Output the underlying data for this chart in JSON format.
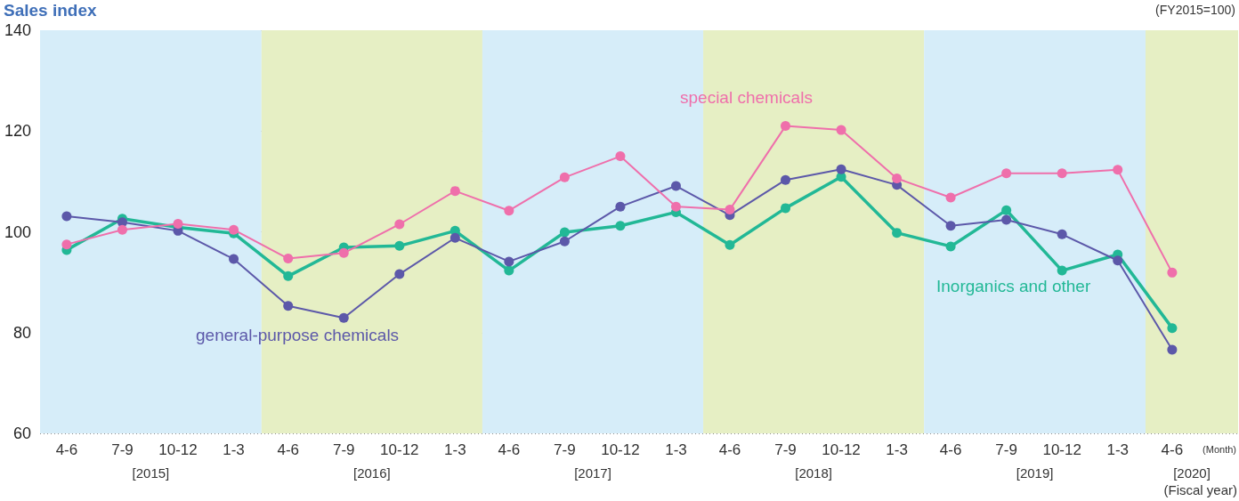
{
  "chart_data": {
    "type": "line",
    "ylabel": "Sales index",
    "xlabel": "(Month)",
    "annotations": [
      "(FY2015=100)",
      "(Fiscal year)"
    ],
    "x": [
      "2015-05-15",
      "2015-08-15",
      "2015-11-15",
      "2016-02-15",
      "2016-05-15",
      "2016-08-15",
      "2016-11-15",
      "2017-02-15",
      "2017-05-15",
      "2017-08-15",
      "2017-11-15",
      "2018-02-15",
      "2018-05-15",
      "2018-08-15",
      "2018-11-15",
      "2019-02-15",
      "2019-05-15",
      "2019-08-15",
      "2019-11-15",
      "2020-02-15",
      "2020-05-15"
    ],
    "series": [
      {
        "name": "Inorganics and other",
        "color": "#22b896",
        "values": [
          96.4,
          102.6,
          100.9,
          99.7,
          91.2,
          96.9,
          97.2,
          100.2,
          92.3,
          99.9,
          101.2,
          103.9,
          97.4,
          104.7,
          110.9,
          99.8,
          97.1,
          104.3,
          92.3,
          95.5,
          80.9
        ]
      },
      {
        "name": "general-purpose chemicals",
        "color": "#5c58a9",
        "values": [
          103.1,
          101.9,
          100.2,
          94.6,
          85.3,
          82.9,
          91.6,
          98.8,
          94.1,
          98.1,
          105.0,
          109.1,
          103.3,
          110.3,
          112.4,
          109.3,
          101.2,
          102.4,
          99.5,
          94.3,
          76.6
        ]
      },
      {
        "name": "special chemicals",
        "color": "#ef6fab",
        "values": [
          97.5,
          100.4,
          101.6,
          100.4,
          94.7,
          95.8,
          101.5,
          108.1,
          104.2,
          110.8,
          115.0,
          105.0,
          104.4,
          121.0,
          120.2,
          110.6,
          106.8,
          111.6,
          111.6,
          112.3,
          91.9
        ]
      }
    ],
    "bands": [
      {
        "axis": "x",
        "from": "2015-04",
        "to": "2016-04",
        "label": "[2015]",
        "color": "#d6edf9"
      },
      {
        "axis": "x",
        "from": "2016-04",
        "to": "2017-04",
        "label": "[2016]",
        "color": "#e6efc4"
      },
      {
        "axis": "x",
        "from": "2017-04",
        "to": "2018-04",
        "label": "[2017]",
        "color": "#d6edf9"
      },
      {
        "axis": "x",
        "from": "2018-04",
        "to": "2019-04",
        "label": "[2018]",
        "color": "#e6efc4"
      },
      {
        "axis": "x",
        "from": "2019-04",
        "to": "2020-04",
        "label": "[2019]",
        "color": "#d6edf9"
      },
      {
        "axis": "x",
        "from": "2020-04",
        "to": "2020-09",
        "label": "[2020]",
        "color": "#e6efc4"
      }
    ],
    "xlim": [
      "2015-04",
      "2020-09"
    ],
    "xticks": [
      {
        "value": "2015-05-15",
        "label": "4-6"
      },
      {
        "value": "2015-08-15",
        "label": "7-9"
      },
      {
        "value": "2015-11-15",
        "label": "10-12"
      },
      {
        "value": "2016-02-15",
        "label": "1-3"
      },
      {
        "value": "2016-05-15",
        "label": "4-6"
      },
      {
        "value": "2016-08-15",
        "label": "7-9"
      },
      {
        "value": "2016-11-15",
        "label": "10-12"
      },
      {
        "value": "2017-02-15",
        "label": "1-3"
      },
      {
        "value": "2017-05-15",
        "label": "4-6"
      },
      {
        "value": "2017-08-15",
        "label": "7-9"
      },
      {
        "value": "2017-11-15",
        "label": "10-12"
      },
      {
        "value": "2018-02-15",
        "label": "1-3"
      },
      {
        "value": "2018-05-15",
        "label": "4-6"
      },
      {
        "value": "2018-08-15",
        "label": "7-9"
      },
      {
        "value": "2018-11-15",
        "label": "10-12"
      },
      {
        "value": "2019-02-15",
        "label": "1-3"
      },
      {
        "value": "2019-05-15",
        "label": "4-6"
      },
      {
        "value": "2019-08-15",
        "label": "7-9"
      },
      {
        "value": "2019-11-15",
        "label": "10-12"
      },
      {
        "value": "2020-02-15",
        "label": "1-3"
      },
      {
        "value": "2020-05-15",
        "label": "4-6"
      }
    ],
    "ylim": [
      60,
      140
    ],
    "yticks": [
      60,
      80,
      100,
      120,
      140
    ],
    "grid": "y",
    "legend": false,
    "marker": "circle",
    "line_style": "solid"
  }
}
